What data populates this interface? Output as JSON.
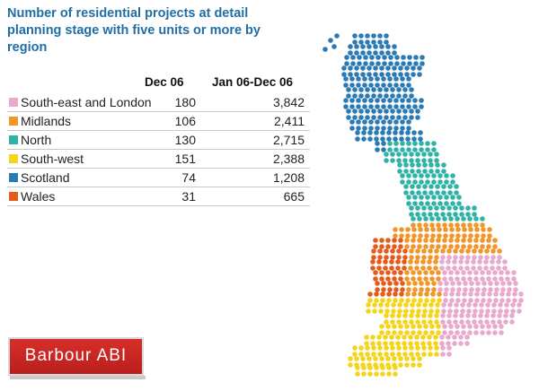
{
  "title": "Number of residential projects at detail planning stage with five units or more by region",
  "columns": {
    "c1": "Dec 06",
    "c2": "Jan 06-Dec 06"
  },
  "logo_text": "Barbour ABI",
  "chart_data": {
    "type": "table",
    "columns": [
      "Dec 06",
      "Jan 06-Dec 06"
    ],
    "rows": [
      {
        "region": "South-east and London",
        "dec06": "180",
        "year": "3,842",
        "color": "#e8a9cd"
      },
      {
        "region": "Midlands",
        "dec06": "106",
        "year": "2,411",
        "color": "#f0962b"
      },
      {
        "region": "North",
        "dec06": "130",
        "year": "2,715",
        "color": "#2fb3a7"
      },
      {
        "region": "South-west",
        "dec06": "151",
        "year": "2,388",
        "color": "#f5d41c"
      },
      {
        "region": "Scotland",
        "dec06": "74",
        "year": "1,208",
        "color": "#2a7ab4"
      },
      {
        "region": "Wales",
        "dec06": "31",
        "year": "665",
        "color": "#e45b1b"
      }
    ]
  }
}
